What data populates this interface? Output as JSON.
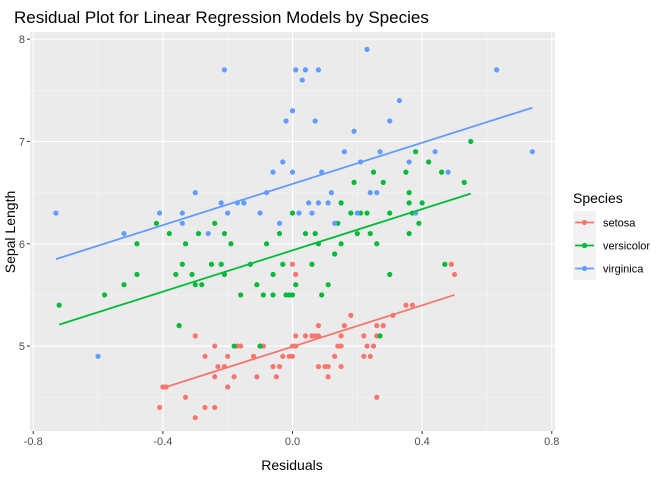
{
  "chart_data": {
    "type": "scatter",
    "title": "Residual Plot for Linear Regression Models by Species",
    "xlabel": "Residuals",
    "ylabel": "Sepal Length",
    "xlim": [
      -0.81,
      0.81
    ],
    "ylim": [
      4.17,
      8.07
    ],
    "xticks": [
      -0.8,
      -0.4,
      0.0,
      0.4,
      0.8
    ],
    "xtick_labels": [
      "-0.8",
      "-0.4",
      "0.0",
      "0.4",
      "0.8"
    ],
    "yticks": [
      5,
      6,
      7,
      8
    ],
    "ytick_labels": [
      "5",
      "6",
      "7",
      "8"
    ],
    "grid": true,
    "legend": {
      "title": "Species",
      "position": "right"
    },
    "series": [
      {
        "name": "setosa",
        "color": "#F8766D",
        "points": [
          [
            -0.4,
            4.6
          ],
          [
            -0.41,
            4.4
          ],
          [
            -0.39,
            4.6
          ],
          [
            -0.3,
            4.3
          ],
          [
            -0.27,
            4.4
          ],
          [
            -0.33,
            4.5
          ],
          [
            -0.24,
            4.4
          ],
          [
            -0.2,
            4.6
          ],
          [
            -0.24,
            4.7
          ],
          [
            -0.18,
            4.7
          ],
          [
            -0.21,
            4.8
          ],
          [
            -0.23,
            4.8
          ],
          [
            -0.2,
            4.9
          ],
          [
            -0.27,
            4.9
          ],
          [
            -0.24,
            5.0
          ],
          [
            -0.3,
            5.1
          ],
          [
            -0.17,
            5.0
          ],
          [
            -0.16,
            5.0
          ],
          [
            -0.11,
            4.7
          ],
          [
            -0.12,
            4.9
          ],
          [
            -0.09,
            5.0
          ],
          [
            -0.09,
            5.0
          ],
          [
            -0.1,
            5.0
          ],
          [
            -0.06,
            4.8
          ],
          [
            -0.04,
            4.8
          ],
          [
            -0.03,
            4.9
          ],
          [
            -0.01,
            4.9
          ],
          [
            0.0,
            4.9
          ],
          [
            0.0,
            5.0
          ],
          [
            0.01,
            5.0
          ],
          [
            0.01,
            5.1
          ],
          [
            0.04,
            5.1
          ],
          [
            0.06,
            5.1
          ],
          [
            0.07,
            5.1
          ],
          [
            0.08,
            5.1
          ],
          [
            0.08,
            5.2
          ],
          [
            0.08,
            4.8
          ],
          [
            0.1,
            4.8
          ],
          [
            0.11,
            4.8
          ],
          [
            0.13,
            4.9
          ],
          [
            0.15,
            4.8
          ],
          [
            0.11,
            4.7
          ],
          [
            0.15,
            5.0
          ],
          [
            0.15,
            5.1
          ],
          [
            0.14,
            5.0
          ],
          [
            0.16,
            5.2
          ],
          [
            0.18,
            5.3
          ],
          [
            0.22,
            5.1
          ],
          [
            0.23,
            5.0
          ],
          [
            0.22,
            4.9
          ],
          [
            0.24,
            4.9
          ],
          [
            0.25,
            5.0
          ],
          [
            0.26,
            5.1
          ],
          [
            0.26,
            4.5
          ],
          [
            0.26,
            5.2
          ],
          [
            0.28,
            5.2
          ],
          [
            0.31,
            5.3
          ],
          [
            0.35,
            5.4
          ],
          [
            0.37,
            5.4
          ],
          [
            0.5,
            5.7
          ],
          [
            0.49,
            5.8
          ],
          [
            0.0,
            5.8
          ],
          [
            0.01,
            5.7
          ],
          [
            -0.05,
            4.7
          ]
        ],
        "fit": [
          [
            -0.4,
            4.59
          ],
          [
            0.5,
            5.5
          ]
        ]
      },
      {
        "name": "versicolor",
        "color": "#00BA38",
        "points": [
          [
            -0.72,
            5.4
          ],
          [
            -0.58,
            5.5
          ],
          [
            -0.52,
            5.6
          ],
          [
            -0.48,
            5.7
          ],
          [
            -0.48,
            6.0
          ],
          [
            -0.42,
            6.2
          ],
          [
            -0.38,
            6.1
          ],
          [
            -0.35,
            5.2
          ],
          [
            -0.36,
            5.7
          ],
          [
            -0.34,
            5.8
          ],
          [
            -0.33,
            6.0
          ],
          [
            -0.31,
            5.7
          ],
          [
            -0.3,
            5.6
          ],
          [
            -0.28,
            5.6
          ],
          [
            -0.29,
            6.1
          ],
          [
            -0.25,
            5.8
          ],
          [
            -0.24,
            6.2
          ],
          [
            -0.22,
            5.8
          ],
          [
            -0.21,
            6.1
          ],
          [
            -0.21,
            5.7
          ],
          [
            -0.19,
            6.0
          ],
          [
            -0.18,
            5.0
          ],
          [
            -0.16,
            5.5
          ],
          [
            -0.13,
            5.8
          ],
          [
            -0.1,
            5.0
          ],
          [
            -0.11,
            5.6
          ],
          [
            -0.09,
            5.5
          ],
          [
            -0.08,
            6.0
          ],
          [
            -0.06,
            5.5
          ],
          [
            -0.04,
            6.1
          ],
          [
            -0.03,
            5.8
          ],
          [
            -0.02,
            5.5
          ],
          [
            -0.01,
            5.5
          ],
          [
            0.0,
            5.5
          ],
          [
            0.0,
            6.3
          ],
          [
            0.01,
            5.6
          ],
          [
            0.04,
            6.1
          ],
          [
            0.06,
            5.8
          ],
          [
            0.07,
            6.1
          ],
          [
            0.08,
            6.0
          ],
          [
            0.09,
            5.5
          ],
          [
            0.11,
            5.6
          ],
          [
            0.13,
            5.9
          ],
          [
            0.14,
            6.2
          ],
          [
            0.15,
            6.0
          ],
          [
            0.15,
            6.4
          ],
          [
            0.18,
            6.3
          ],
          [
            0.19,
            6.6
          ],
          [
            0.2,
            6.1
          ],
          [
            0.21,
            6.3
          ],
          [
            0.23,
            6.3
          ],
          [
            0.24,
            6.1
          ],
          [
            0.25,
            6.7
          ],
          [
            0.26,
            6.0
          ],
          [
            0.27,
            5.1
          ],
          [
            0.28,
            6.6
          ],
          [
            0.3,
            6.3
          ],
          [
            0.3,
            5.7
          ],
          [
            0.35,
            6.7
          ],
          [
            0.36,
            6.1
          ],
          [
            0.36,
            6.5
          ],
          [
            0.37,
            6.3
          ],
          [
            0.38,
            6.9
          ],
          [
            0.39,
            6.2
          ],
          [
            0.4,
            6.4
          ],
          [
            0.42,
            6.8
          ],
          [
            0.46,
            6.7
          ],
          [
            0.47,
            5.8
          ],
          [
            0.53,
            6.6
          ],
          [
            0.55,
            7.0
          ],
          [
            0.36,
            6.4
          ],
          [
            -0.06,
            5.7
          ]
        ],
        "fit": [
          [
            -0.72,
            5.21
          ],
          [
            0.55,
            6.49
          ]
        ]
      },
      {
        "name": "virginica",
        "color": "#619CFF",
        "points": [
          [
            -0.73,
            6.3
          ],
          [
            -0.6,
            4.9
          ],
          [
            -0.52,
            6.1
          ],
          [
            -0.41,
            6.3
          ],
          [
            -0.34,
            6.2
          ],
          [
            -0.34,
            6.3
          ],
          [
            -0.3,
            6.5
          ],
          [
            -0.26,
            6.1
          ],
          [
            -0.22,
            6.4
          ],
          [
            -0.21,
            7.7
          ],
          [
            -0.2,
            6.3
          ],
          [
            -0.17,
            6.4
          ],
          [
            -0.15,
            6.4
          ],
          [
            -0.15,
            6.4
          ],
          [
            -0.1,
            6.3
          ],
          [
            -0.08,
            6.5
          ],
          [
            -0.06,
            6.7
          ],
          [
            -0.04,
            6.2
          ],
          [
            -0.03,
            6.8
          ],
          [
            -0.02,
            7.2
          ],
          [
            0.0,
            7.3
          ],
          [
            0.0,
            6.7
          ],
          [
            0.01,
            7.7
          ],
          [
            0.02,
            6.3
          ],
          [
            0.03,
            7.6
          ],
          [
            0.04,
            7.7
          ],
          [
            0.05,
            6.4
          ],
          [
            0.06,
            6.3
          ],
          [
            0.07,
            7.2
          ],
          [
            0.08,
            6.4
          ],
          [
            0.08,
            7.7
          ],
          [
            0.09,
            6.7
          ],
          [
            0.11,
            6.4
          ],
          [
            0.12,
            6.5
          ],
          [
            0.13,
            6.2
          ],
          [
            0.16,
            6.9
          ],
          [
            0.19,
            7.1
          ],
          [
            0.2,
            6.3
          ],
          [
            0.21,
            6.8
          ],
          [
            0.23,
            7.9
          ],
          [
            0.24,
            6.5
          ],
          [
            0.26,
            6.5
          ],
          [
            0.27,
            6.9
          ],
          [
            0.3,
            7.2
          ],
          [
            0.33,
            7.4
          ],
          [
            0.36,
            6.8
          ],
          [
            0.38,
            6.3
          ],
          [
            0.44,
            6.9
          ],
          [
            0.48,
            6.7
          ],
          [
            0.63,
            7.7
          ],
          [
            0.74,
            6.9
          ]
        ],
        "fit": [
          [
            -0.73,
            5.85
          ],
          [
            0.74,
            7.33
          ]
        ]
      }
    ]
  }
}
